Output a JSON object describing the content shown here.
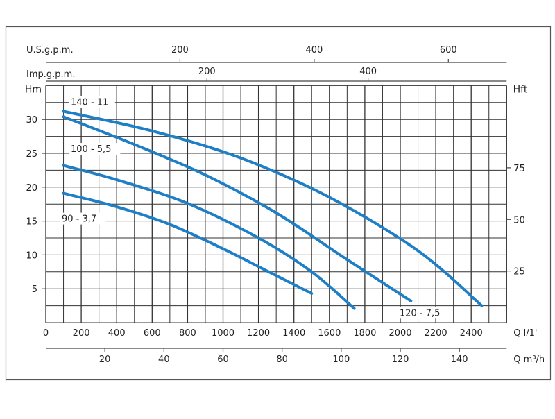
{
  "chart_data": {
    "type": "line",
    "x_primary": {
      "label": "Q l/1'",
      "ticks": [
        "0",
        "200",
        "400",
        "600",
        "800",
        "1000",
        "1200",
        "1400",
        "1600",
        "1800",
        "2000",
        "2200",
        "2400"
      ],
      "range": [
        0,
        2600
      ]
    },
    "x_m3h": {
      "label": "Q m³/h",
      "ticks": [
        "20",
        "40",
        "60",
        "80",
        "100",
        "120",
        "140"
      ]
    },
    "x_us_gpm": {
      "label": "U.S.g.p.m.",
      "ticks": [
        "200",
        "400",
        "600"
      ]
    },
    "x_imp_gpm": {
      "label": "Imp.g.p.m.",
      "ticks": [
        "200",
        "400"
      ]
    },
    "y_left": {
      "label": "Hm",
      "ticks": [
        "5",
        "10",
        "15",
        "20",
        "25",
        "30"
      ],
      "range": [
        0,
        35
      ]
    },
    "y_right": {
      "label": "Hft",
      "ticks": [
        "25",
        "50",
        "75"
      ]
    },
    "series": [
      {
        "name": "140 - 11",
        "x": [
          100,
          600,
          1100,
          1600,
          2100,
          2460
        ],
        "y": [
          31.2,
          28.3,
          24.3,
          18.5,
          10.6,
          2.5
        ]
      },
      {
        "name": "120 - 7,5",
        "x": [
          100,
          500,
          900,
          1300,
          1700,
          2060
        ],
        "y": [
          30.4,
          26.3,
          21.8,
          16.2,
          9.3,
          3.2
        ]
      },
      {
        "name": "100 - 5,5",
        "x": [
          100,
          400,
          800,
          1200,
          1500,
          1740
        ],
        "y": [
          23.2,
          21.1,
          17.6,
          12.5,
          7.5,
          2.1
        ]
      },
      {
        "name": "90 - 3,7",
        "x": [
          100,
          400,
          700,
          1000,
          1250,
          1500
        ],
        "y": [
          19.1,
          17.1,
          14.5,
          10.9,
          7.6,
          4.3
        ]
      }
    ]
  }
}
